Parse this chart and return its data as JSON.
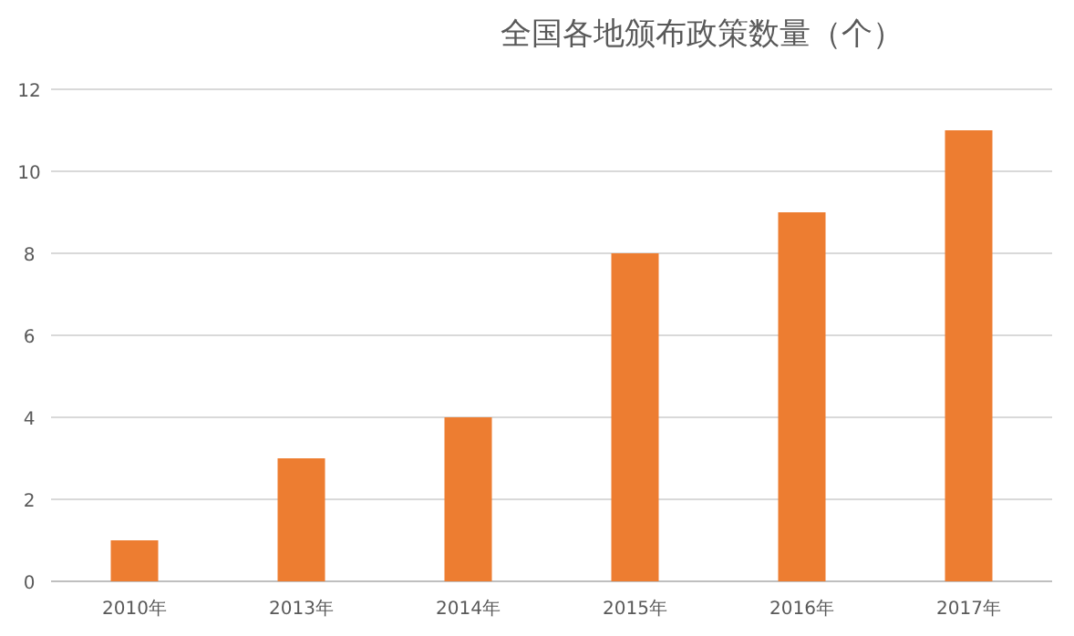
{
  "chart_data": {
    "type": "bar",
    "title": "全国各地颁布政策数量（个）",
    "categories": [
      "2010年",
      "2013年",
      "2014年",
      "2015年",
      "2016年",
      "2017年"
    ],
    "values": [
      1,
      3,
      4,
      8,
      9,
      11
    ],
    "color": "#ed7d31",
    "ylim": [
      0,
      12
    ],
    "yticks": [
      0,
      2,
      4,
      6,
      8,
      10,
      12
    ],
    "grid": "y"
  }
}
